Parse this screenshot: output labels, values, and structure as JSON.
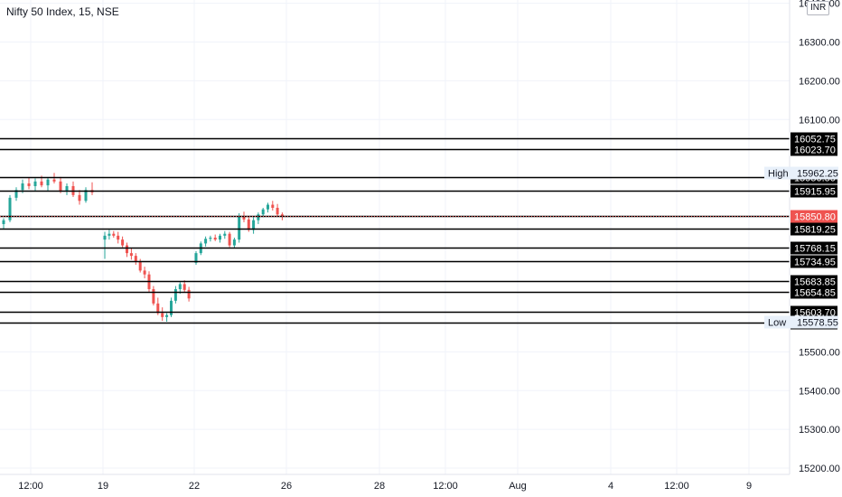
{
  "header": {
    "title": "Nifty 50 Index, 15, NSE",
    "currency": "INR"
  },
  "colors": {
    "up": "#26a69a",
    "down": "#ef5350",
    "level_line": "#000000",
    "tag_bg": "#000000",
    "last_price_bg": "#ef5350",
    "hl_tag_bg": "#e8f0fa",
    "grid": "#f0f3fa"
  },
  "chart_data": {
    "type": "candlestick",
    "y_axis": {
      "ticks": [
        16400,
        16300,
        16200,
        16100,
        15500,
        15400,
        15300,
        15200
      ],
      "tick_labels": [
        "16400.00",
        "16300.00",
        "16200.00",
        "16100.00",
        "15500.00",
        "15400.00",
        "15300.00",
        "15200.00"
      ],
      "ylim": [
        15180,
        16410
      ]
    },
    "x_axis": {
      "labels": [
        "12:00",
        "19",
        "22",
        "26",
        "28",
        "12:00",
        "Aug",
        "4",
        "12:00",
        "9"
      ]
    },
    "levels": [
      {
        "value": 16052.75,
        "label": "16052.75"
      },
      {
        "value": 16023.7,
        "label": "16023.70"
      },
      {
        "value": 15950.5,
        "label": "15950.50"
      },
      {
        "value": 15915.95,
        "label": "15915.95"
      },
      {
        "value": 15851.0,
        "label": "15851.00"
      },
      {
        "value": 15819.25,
        "label": "15819.25"
      },
      {
        "value": 15768.15,
        "label": "15768.15"
      },
      {
        "value": 15734.95,
        "label": "15734.95"
      },
      {
        "value": 15683.85,
        "label": "15683.85"
      },
      {
        "value": 15654.85,
        "label": "15654.85"
      },
      {
        "value": 15603.7,
        "label": "15603.70"
      },
      {
        "value": 15576.1,
        "label": "15576.10"
      }
    ],
    "last_price": {
      "value": 15850.8,
      "label": "15850.80"
    },
    "high": {
      "value": 15962.25,
      "label": "15962.25",
      "name": "High"
    },
    "low": {
      "value": 15578.55,
      "label": "15578.55",
      "name": "Low"
    },
    "candles": [
      [
        15830,
        15845,
        15818,
        15840
      ],
      [
        15840,
        15905,
        15835,
        15898
      ],
      [
        15898,
        15925,
        15890,
        15918
      ],
      [
        15918,
        15945,
        15910,
        15935
      ],
      [
        15935,
        15950,
        15920,
        15928
      ],
      [
        15928,
        15948,
        15915,
        15940
      ],
      [
        15940,
        15955,
        15925,
        15930
      ],
      [
        15930,
        15950,
        15915,
        15945
      ],
      [
        15945,
        15962,
        15935,
        15940
      ],
      [
        15940,
        15952,
        15910,
        15915
      ],
      [
        15915,
        15935,
        15905,
        15928
      ],
      [
        15928,
        15940,
        15900,
        15905
      ],
      [
        15905,
        15918,
        15880,
        15890
      ],
      [
        15890,
        15925,
        15885,
        15918
      ],
      [
        15918,
        15938,
        15905,
        15912
      ],
      [
        15790,
        15810,
        15740,
        15800
      ],
      [
        15800,
        15815,
        15790,
        15805
      ],
      [
        15805,
        15812,
        15795,
        15800
      ],
      [
        15800,
        15810,
        15780,
        15790
      ],
      [
        15790,
        15798,
        15770,
        15775
      ],
      [
        15775,
        15782,
        15745,
        15755
      ],
      [
        15755,
        15768,
        15738,
        15748
      ],
      [
        15748,
        15755,
        15725,
        15732
      ],
      [
        15732,
        15740,
        15705,
        15710
      ],
      [
        15710,
        15720,
        15690,
        15700
      ],
      [
        15700,
        15708,
        15655,
        15662
      ],
      [
        15662,
        15670,
        15620,
        15625
      ],
      [
        15625,
        15640,
        15595,
        15600
      ],
      [
        15600,
        15615,
        15580,
        15590
      ],
      [
        15590,
        15600,
        15578,
        15595
      ],
      [
        15595,
        15640,
        15590,
        15632
      ],
      [
        15632,
        15670,
        15625,
        15662
      ],
      [
        15662,
        15680,
        15650,
        15675
      ],
      [
        15675,
        15685,
        15655,
        15660
      ],
      [
        15660,
        15668,
        15630,
        15638
      ],
      [
        15730,
        15760,
        15725,
        15755
      ],
      [
        15755,
        15785,
        15750,
        15780
      ],
      [
        15780,
        15798,
        15772,
        15792
      ],
      [
        15792,
        15800,
        15785,
        15795
      ],
      [
        15795,
        15803,
        15786,
        15790
      ],
      [
        15790,
        15805,
        15782,
        15800
      ],
      [
        15800,
        15812,
        15792,
        15805
      ],
      [
        15805,
        15810,
        15770,
        15775
      ],
      [
        15775,
        15795,
        15768,
        15790
      ],
      [
        15790,
        15858,
        15782,
        15850
      ],
      [
        15850,
        15862,
        15835,
        15842
      ],
      [
        15842,
        15850,
        15810,
        15815
      ],
      [
        15815,
        15848,
        15805,
        15840
      ],
      [
        15840,
        15860,
        15830,
        15855
      ],
      [
        15855,
        15872,
        15848,
        15868
      ],
      [
        15868,
        15885,
        15860,
        15880
      ],
      [
        15880,
        15890,
        15865,
        15872
      ],
      [
        15872,
        15882,
        15850,
        15855
      ],
      [
        15855,
        15860,
        15840,
        15850.8
      ]
    ]
  }
}
